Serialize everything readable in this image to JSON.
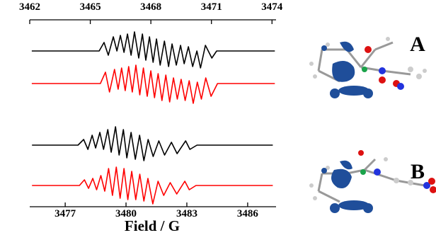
{
  "chart_data": [
    {
      "type": "line",
      "annotation": "A",
      "xlim": [
        3462,
        3474.2
      ],
      "xticks": [
        3462,
        3465,
        3468,
        3471,
        3474
      ],
      "series": [
        {
          "color": "#000000",
          "x": [
            3462.1,
            3465.44,
            3465.68,
            3465.89,
            3466.14,
            3466.32,
            3466.49,
            3466.67,
            3466.84,
            3467.02,
            3467.19,
            3467.4,
            3467.58,
            3467.75,
            3467.93,
            3468.11,
            3468.28,
            3468.46,
            3468.67,
            3468.88,
            3469.05,
            3469.26,
            3469.47,
            3469.65,
            3469.86,
            3470.07,
            3470.28,
            3470.46,
            3470.7,
            3471.02,
            3471.26,
            3471.75,
            3474.14
          ],
          "values": [
            0,
            0,
            12,
            -6,
            20,
            0,
            22,
            -2,
            24,
            -6,
            27,
            -10,
            24,
            -13,
            20,
            -16,
            17,
            -20,
            14,
            -22,
            10,
            -20,
            8,
            -18,
            6,
            -22,
            0,
            -24,
            8,
            -10,
            0,
            0,
            0
          ]
        },
        {
          "color": "#ff0000",
          "x": [
            3462.1,
            3465.5,
            3465.75,
            3465.95,
            3466.2,
            3466.38,
            3466.55,
            3466.73,
            3466.9,
            3467.08,
            3467.26,
            3467.45,
            3467.63,
            3467.82,
            3468.0,
            3468.18,
            3468.36,
            3468.55,
            3468.74,
            3468.93,
            3469.12,
            3469.31,
            3469.5,
            3469.7,
            3469.9,
            3470.1,
            3470.3,
            3470.5,
            3470.72,
            3470.98,
            3471.3,
            3471.8,
            3474.14
          ],
          "values": [
            0,
            0,
            16,
            -12,
            20,
            -8,
            22,
            -10,
            24,
            -12,
            26,
            -16,
            22,
            -18,
            18,
            -20,
            14,
            -24,
            12,
            -26,
            8,
            -22,
            6,
            -24,
            4,
            -28,
            2,
            -22,
            8,
            -18,
            0,
            0,
            0
          ]
        }
      ]
    },
    {
      "type": "line",
      "annotation": "B",
      "xlim": [
        3475.25,
        3487.4
      ],
      "xticks": [
        3477,
        3480,
        3483,
        3486
      ],
      "xlabel": "Field / G",
      "series": [
        {
          "color": "#000000",
          "x": [
            3475.36,
            3477.63,
            3477.91,
            3478.12,
            3478.33,
            3478.5,
            3478.71,
            3478.89,
            3479.1,
            3479.27,
            3479.48,
            3479.66,
            3479.87,
            3480.04,
            3480.25,
            3480.46,
            3480.67,
            3480.88,
            3481.09,
            3481.34,
            3481.62,
            3481.9,
            3482.24,
            3482.52,
            3482.94,
            3483.15,
            3483.5,
            3487.24
          ],
          "values": [
            0,
            0,
            8,
            -6,
            14,
            -4,
            18,
            -6,
            22,
            -10,
            26,
            -14,
            22,
            -18,
            18,
            -20,
            14,
            -22,
            8,
            -16,
            6,
            -14,
            4,
            -12,
            6,
            -6,
            0,
            0
          ]
        },
        {
          "color": "#ff0000",
          "x": [
            3475.36,
            3477.7,
            3477.95,
            3478.15,
            3478.36,
            3478.55,
            3478.76,
            3478.95,
            3479.14,
            3479.33,
            3479.52,
            3479.71,
            3479.9,
            3480.09,
            3480.28,
            3480.48,
            3480.68,
            3480.88,
            3481.08,
            3481.32,
            3481.58,
            3481.86,
            3482.18,
            3482.5,
            3482.9,
            3483.12,
            3483.45,
            3487.24
          ],
          "values": [
            0,
            0,
            8,
            -4,
            10,
            -6,
            14,
            -8,
            24,
            -14,
            26,
            -18,
            24,
            -20,
            20,
            -20,
            16,
            -22,
            10,
            -26,
            6,
            -14,
            4,
            -12,
            6,
            -6,
            0,
            0
          ]
        }
      ]
    }
  ]
}
